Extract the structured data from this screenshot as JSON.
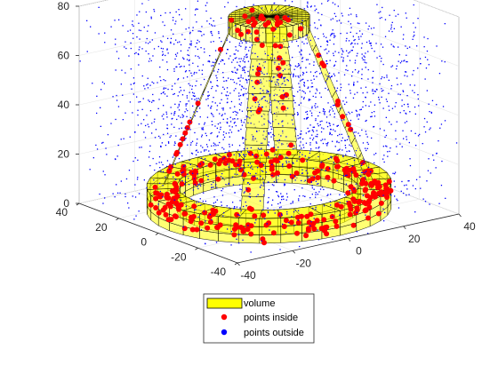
{
  "chart_data": {
    "type": "scatter",
    "view": "3d",
    "xlabel": "",
    "ylabel": "",
    "zlabel": "",
    "x_range": [
      -40,
      40
    ],
    "y_range": [
      -40,
      40
    ],
    "z_range": [
      0,
      80
    ],
    "x_ticks": [
      "-40",
      "-20",
      "0",
      "20",
      "40"
    ],
    "y_ticks": [
      "-40",
      "-20",
      "0",
      "20",
      "40"
    ],
    "z_ticks": [
      "0",
      "20",
      "40",
      "60",
      "80"
    ],
    "grid": true,
    "legend_position": "bottom-center",
    "shape": {
      "name": "volume",
      "base_ring": {
        "outer_radius": 36,
        "inner_radius": 27,
        "z_min": 0,
        "z_max": 10
      },
      "top_cap": {
        "radius": 12,
        "z_min": 72,
        "z_max": 78
      },
      "struts": 4,
      "color": "#ffff00"
    },
    "series": [
      {
        "name": "volume",
        "color": "#ffff00",
        "marker": "patch"
      },
      {
        "name": "points inside",
        "color": "#ff0000",
        "marker": "circle"
      },
      {
        "name": "points outside",
        "color": "#0000ff",
        "marker": "dot"
      }
    ]
  }
}
